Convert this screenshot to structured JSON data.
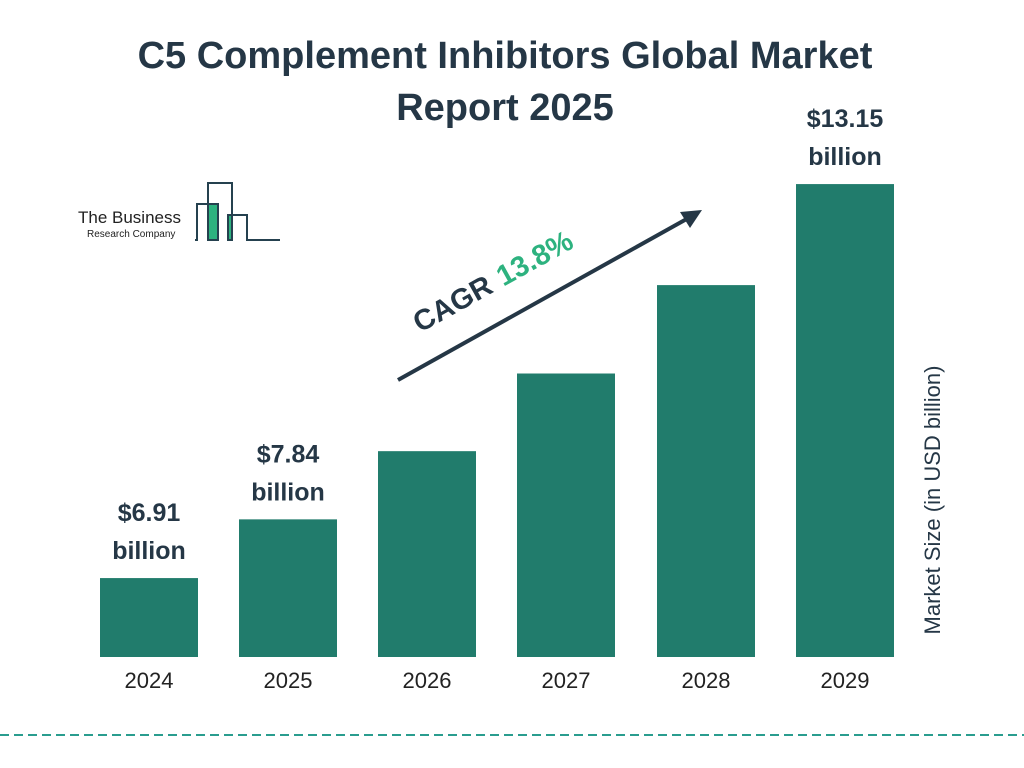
{
  "chart_data": {
    "type": "bar",
    "title": "C5 Complement Inhibitors Global Market Report 2025",
    "ylabel": "Market Size (in USD billion)",
    "categories": [
      "2024",
      "2025",
      "2026",
      "2027",
      "2028",
      "2029"
    ],
    "values": [
      6.91,
      7.84,
      8.92,
      10.15,
      11.55,
      13.15
    ],
    "data_labels": [
      {
        "category": "2024",
        "line1": "$6.91",
        "line2": "billion"
      },
      {
        "category": "2025",
        "line1": "$7.84",
        "line2": "billion"
      },
      {
        "category": "2029",
        "line1": "$13.15",
        "line2": "billion"
      }
    ],
    "annotation": {
      "prefix": "CAGR",
      "value": "13.8%"
    },
    "grid": false,
    "colors": {
      "bar": "#217c6c",
      "text": "#253746",
      "cagr": "#2db27f",
      "dash": "#2a9d8f"
    }
  },
  "logo": {
    "line1": "The Business",
    "line2": "Research Company"
  }
}
